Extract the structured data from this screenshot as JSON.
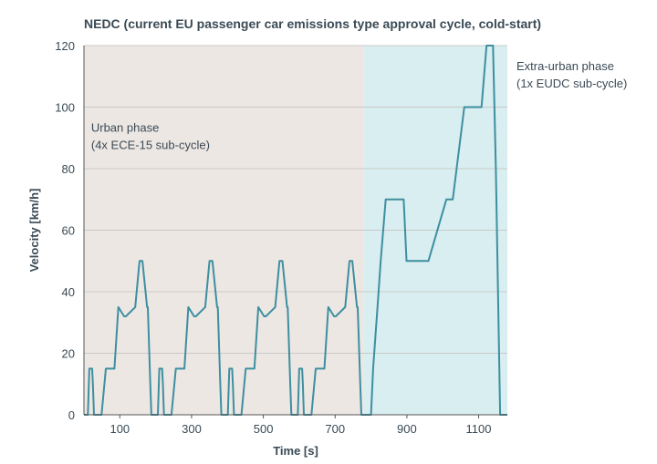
{
  "chart_data": {
    "type": "line",
    "title": "NEDC (current EU passenger car emissions type approval cycle, cold-start)",
    "xlabel": "Time [s]",
    "ylabel": "Velocity [km/h]",
    "xlim": [
      0,
      1180
    ],
    "ylim": [
      0,
      120
    ],
    "x_ticks": [
      100,
      300,
      500,
      700,
      900,
      1100
    ],
    "y_ticks": [
      0,
      20,
      40,
      60,
      80,
      100,
      120
    ],
    "grid": "horizontal",
    "colors": {
      "line": "#3d8fa0",
      "urban_bg": "#ede7e4",
      "extra_urban_bg": "#d9eef0",
      "grid": "#c9c9c9",
      "text": "#3a4a55"
    },
    "regions": [
      {
        "name": "urban",
        "x": [
          0,
          780
        ],
        "label_lines": [
          "Urban phase",
          "(4x ECE-15 sub-cycle)"
        ]
      },
      {
        "name": "extra-urban",
        "x": [
          780,
          1180
        ],
        "label_lines": [
          "Extra-urban phase",
          "(1x EUDC sub-cycle)"
        ]
      }
    ],
    "series": [
      {
        "x": [
          0,
          11,
          15,
          23,
          25,
          28,
          49,
          61,
          85,
          96,
          112,
          117,
          143,
          155,
          163,
          176,
          178,
          185,
          188,
          195,
          206,
          210,
          218,
          220,
          223,
          244,
          256,
          280,
          291,
          307,
          312,
          338,
          350,
          358,
          371,
          373,
          380,
          383,
          390,
          401,
          405,
          413,
          415,
          418,
          439,
          451,
          475,
          486,
          502,
          507,
          533,
          545,
          553,
          566,
          568,
          575,
          578,
          585,
          596,
          600,
          608,
          610,
          613,
          634,
          646,
          670,
          681,
          697,
          702,
          728,
          740,
          748,
          761,
          763,
          770,
          773,
          780,
          800,
          806,
          818,
          827,
          841,
          891,
          899,
          907,
          941,
          960,
          1010,
          1028,
          1060,
          1094,
          1108,
          1122,
          1140,
          1148,
          1160,
          1180
        ],
        "y": [
          0,
          0,
          15,
          15,
          10,
          0,
          0,
          15,
          15,
          35,
          32,
          32,
          35,
          50,
          50,
          35,
          35,
          10,
          0,
          0,
          0,
          15,
          15,
          10,
          0,
          0,
          15,
          15,
          35,
          32,
          32,
          35,
          50,
          50,
          35,
          35,
          10,
          0,
          0,
          0,
          15,
          15,
          10,
          0,
          0,
          15,
          15,
          35,
          32,
          32,
          35,
          50,
          50,
          35,
          35,
          10,
          0,
          0,
          0,
          15,
          15,
          10,
          0,
          0,
          15,
          15,
          35,
          32,
          32,
          35,
          50,
          50,
          35,
          35,
          10,
          0,
          0,
          0,
          15,
          35,
          50,
          70,
          70,
          50,
          50,
          50,
          50,
          70,
          70,
          100,
          100,
          100,
          120,
          120,
          80,
          0,
          0
        ]
      }
    ]
  }
}
